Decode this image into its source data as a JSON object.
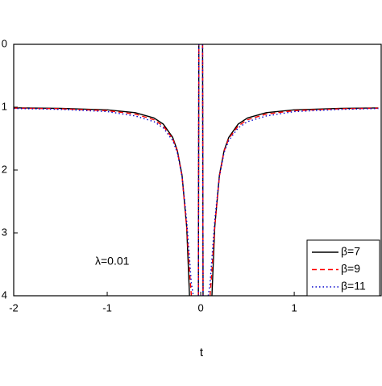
{
  "chart_data": {
    "type": "line",
    "xlabel": "t",
    "annotation": "λ=0.01",
    "x": [
      -2,
      -1.5,
      -1,
      -0.7,
      -0.5,
      -0.4,
      -0.3,
      -0.25,
      -0.2,
      -0.15,
      -0.12,
      -0.1,
      -0.08,
      -0.05,
      -0.025,
      -0.02,
      0,
      0.02,
      0.025,
      0.05,
      0.08,
      0.1,
      0.12,
      0.15,
      0.2,
      0.25,
      0.3,
      0.4,
      0.5,
      0.7,
      1,
      1.5,
      1.9
    ],
    "series": [
      {
        "name": "β=7",
        "color": "#000000",
        "linestyle": "solid",
        "values": [
          -1.011,
          -1.019,
          -1.043,
          -1.088,
          -1.172,
          -1.27,
          -1.48,
          -1.69,
          -2.08,
          -2.91,
          -4,
          null,
          null,
          null,
          -4,
          0,
          null,
          0,
          -4,
          null,
          null,
          null,
          -4,
          -2.91,
          -2.08,
          -1.69,
          -1.48,
          -1.27,
          -1.172,
          -1.088,
          -1.043,
          -1.019,
          -1.012
        ]
      },
      {
        "name": "β=9",
        "color": "#ff0000",
        "linestyle": "dashed",
        "values": [
          -1.015,
          -1.025,
          -1.055,
          -1.11,
          -1.2,
          -1.3,
          -1.5,
          -1.7,
          -2.1,
          -2.9,
          -3.6,
          -4,
          null,
          null,
          -4,
          0,
          null,
          0,
          -4,
          null,
          null,
          -4,
          -3.6,
          -2.9,
          -2.1,
          -1.7,
          -1.5,
          -1.3,
          -1.2,
          -1.11,
          -1.055,
          -1.025,
          -1.016
        ]
      },
      {
        "name": "β=11",
        "color": "#0000cc",
        "linestyle": "dotted",
        "values": [
          -1.02,
          -1.035,
          -1.07,
          -1.14,
          -1.23,
          -1.33,
          -1.53,
          -1.72,
          -2.1,
          -2.8,
          -3.4,
          -3.8,
          -4,
          null,
          -4,
          0,
          null,
          0,
          -4,
          null,
          -4,
          -3.8,
          -3.4,
          -2.8,
          -2.1,
          -1.72,
          -1.53,
          -1.33,
          -1.23,
          -1.14,
          -1.07,
          -1.035,
          -1.021
        ]
      }
    ],
    "xlim": [
      -2,
      1.93
    ],
    "xticks": [
      -2,
      -1,
      0,
      1
    ],
    "ylim": [
      -4,
      0
    ],
    "yticks": [
      {
        "value": 0,
        "label": "0"
      },
      {
        "value": -1,
        "label": "1"
      },
      {
        "value": -2,
        "label": "2"
      },
      {
        "value": -3,
        "label": "3"
      },
      {
        "value": -4,
        "label": "4"
      }
    ],
    "legend": "lower right"
  }
}
